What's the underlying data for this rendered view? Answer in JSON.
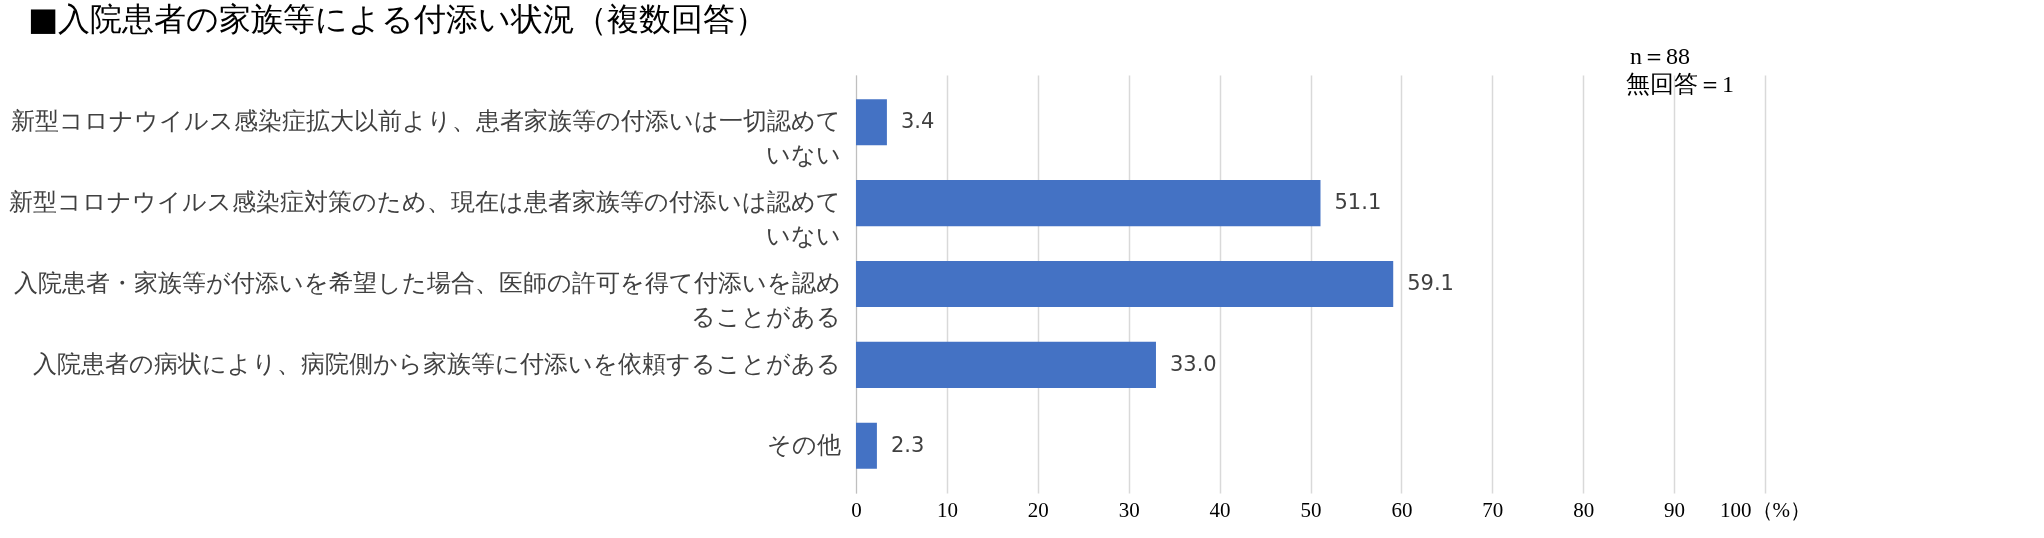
{
  "chart_data": {
    "type": "bar",
    "orientation": "horizontal",
    "title": "■入院患者の家族等による付添い状況（複数回答）",
    "categories": [
      "新型コロナウイルス感染症拡大以前より、患者家族等の付添いは一切認めていない",
      "新型コロナウイルス感染症対策のため、現在は患者家族等の付添いは認めていない",
      "入院患者・家族等が付添いを希望した場合、医師の許可を得て付添いを認めることがある",
      "入院患者の病状により、病院側から家族等に付添いを依頼することがある",
      "その他"
    ],
    "values": [
      3.4,
      51.1,
      59.1,
      33.0,
      2.3
    ],
    "color": "#4472c4",
    "xlim": [
      0,
      100
    ],
    "xticks": [
      0,
      10,
      20,
      30,
      40,
      50,
      60,
      70,
      80,
      90,
      {
        "value": 100,
        "label": "100（%）"
      }
    ],
    "grid": "x",
    "value_labels": [
      "3.4",
      "51.1",
      "59.1",
      "33.0",
      "2.3"
    ],
    "annotations": [
      "n＝88",
      "無回答＝1"
    ]
  }
}
